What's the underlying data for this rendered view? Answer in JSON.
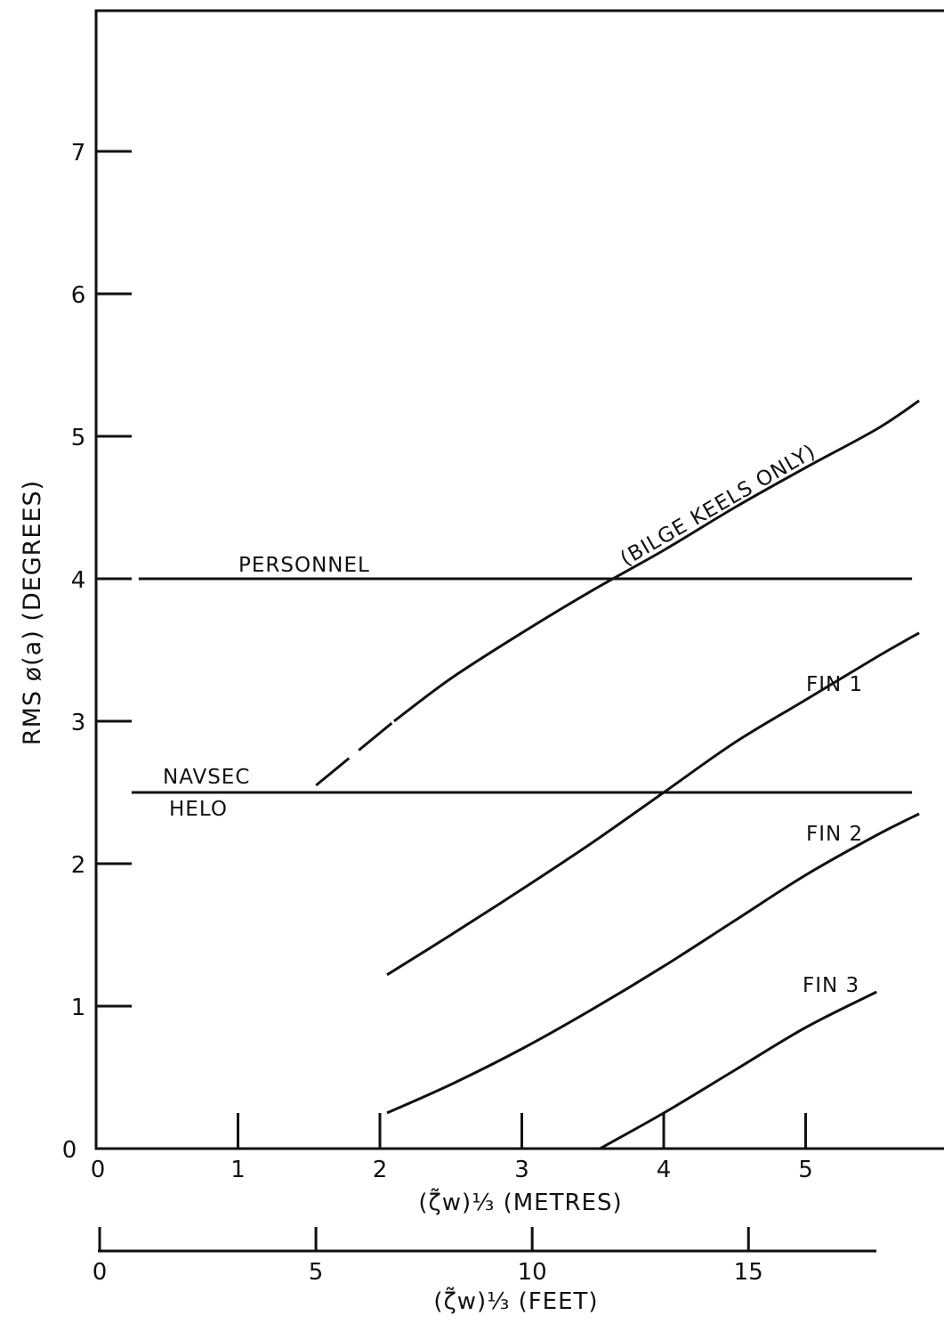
{
  "chart_data": {
    "type": "line",
    "ylabel": "RMS ø(a) (DEGREES)",
    "xlabel": "(ζ̃w)⅓ (METRES)",
    "x2label": "(ζ̃w)⅓ (FEET)",
    "xlim": [
      0,
      5.8
    ],
    "ylim": [
      0,
      8
    ],
    "x_ticks": [
      "0",
      "1",
      "2",
      "3",
      "4",
      "5"
    ],
    "y_ticks": [
      "0",
      "1",
      "2",
      "3",
      "4",
      "5",
      "6",
      "7"
    ],
    "x2_ticks": [
      "0",
      "5",
      "10",
      "15"
    ],
    "x2_tick_values": [
      0,
      5,
      10,
      15
    ],
    "grid": false,
    "series": [
      {
        "name": "(BILGE KEELS ONLY)",
        "dashed_segment": [
          [
            1.55,
            2.55
          ],
          [
            2.1,
            3.0
          ]
        ],
        "points": [
          [
            2.1,
            3.0
          ],
          [
            2.5,
            3.3
          ],
          [
            3.0,
            3.62
          ],
          [
            3.5,
            3.92
          ],
          [
            4.0,
            4.2
          ],
          [
            4.5,
            4.5
          ],
          [
            5.0,
            4.78
          ],
          [
            5.5,
            5.05
          ],
          [
            5.8,
            5.25
          ]
        ]
      },
      {
        "name": "FIN 1",
        "points": [
          [
            2.05,
            1.22
          ],
          [
            2.5,
            1.5
          ],
          [
            3.0,
            1.82
          ],
          [
            3.5,
            2.15
          ],
          [
            4.0,
            2.5
          ],
          [
            4.5,
            2.85
          ],
          [
            5.0,
            3.15
          ],
          [
            5.5,
            3.45
          ],
          [
            5.8,
            3.62
          ]
        ]
      },
      {
        "name": "FIN 2",
        "points": [
          [
            2.05,
            0.25
          ],
          [
            2.5,
            0.45
          ],
          [
            3.0,
            0.7
          ],
          [
            3.5,
            0.98
          ],
          [
            4.0,
            1.28
          ],
          [
            4.5,
            1.6
          ],
          [
            5.0,
            1.92
          ],
          [
            5.5,
            2.2
          ],
          [
            5.8,
            2.35
          ]
        ]
      },
      {
        "name": "FIN 3",
        "points": [
          [
            3.55,
            0.0
          ],
          [
            4.0,
            0.25
          ],
          [
            4.5,
            0.55
          ],
          [
            5.0,
            0.85
          ],
          [
            5.5,
            1.1
          ]
        ]
      }
    ],
    "reference_lines": [
      {
        "name": "PERSONNEL",
        "y": 4.0,
        "x": [
          0.3,
          5.75
        ]
      },
      {
        "name": "NAVSEC",
        "name2": "HELO",
        "y": 2.5,
        "x": [
          0.25,
          5.75
        ]
      }
    ]
  }
}
